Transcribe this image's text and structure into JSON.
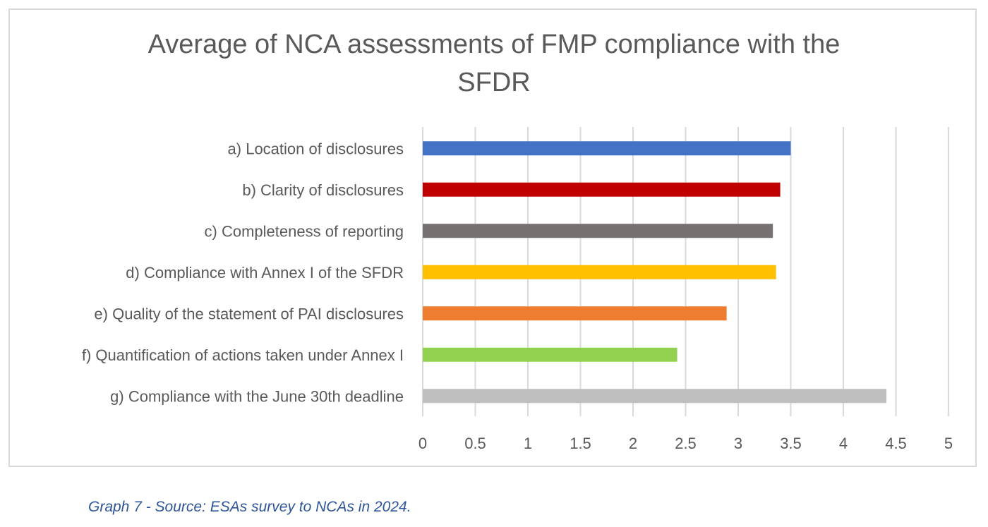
{
  "chart_data": {
    "type": "bar",
    "orientation": "horizontal",
    "title_lines": [
      "Average of NCA assessments of FMP compliance with the",
      "SFDR"
    ],
    "categories": [
      "a) Location of disclosures",
      "b) Clarity of disclosures",
      "c) Completeness of reporting",
      "d) Compliance with Annex I of the SFDR",
      "e) Quality of the statement of PAI disclosures",
      "f) Quantification of actions taken under Annex I",
      "g) Compliance with the June 30th deadline"
    ],
    "values": [
      3.5,
      3.4,
      3.33,
      3.36,
      2.89,
      2.42,
      4.41
    ],
    "colors": [
      "#4472c4",
      "#c00000",
      "#767171",
      "#ffc000",
      "#ed7d31",
      "#92d050",
      "#bfbfbf"
    ],
    "xlim": [
      0,
      5
    ],
    "x_ticks": [
      "0",
      "0.5",
      "1",
      "1.5",
      "2",
      "2.5",
      "3",
      "3.5",
      "4",
      "4.5",
      "5"
    ],
    "grid": true,
    "legend": "none"
  },
  "caption": "Graph 7 - Source: ESAs survey to NCAs in 2024."
}
